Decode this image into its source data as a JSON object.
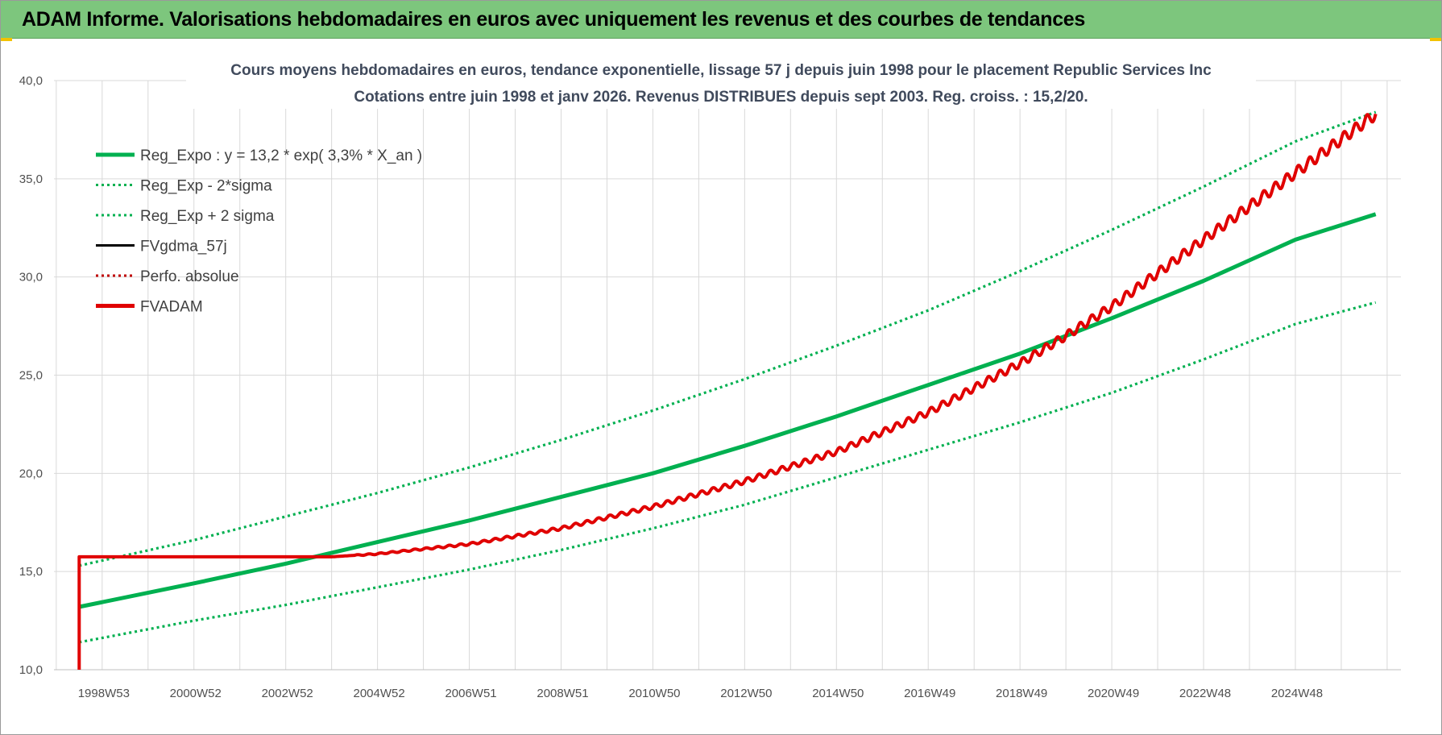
{
  "header": {
    "title": "ADAM Informe. Valorisations hebdomadaires en euros avec uniquement les revenus et des courbes de tendances"
  },
  "chart_data": {
    "type": "line",
    "title": "Cours moyens hebdomadaires en euros, tendance exponentielle, lissage 57 j depuis juin 1998 pour le placement Republic Services Inc",
    "subtitle": "Cotations entre juin 1998 et janv 2026. Revenus DISTRIBUES depuis sept 2003. Reg. croiss. : 15,2/20.",
    "xlabel": "",
    "ylabel": "",
    "ylim": [
      10,
      40
    ],
    "xlim": [
      1996.95,
      2026.3
    ],
    "yticks": [
      "10,0",
      "15,0",
      "20,0",
      "25,0",
      "30,0",
      "35,0",
      "40,0"
    ],
    "xticks": [
      {
        "label": "1998W53",
        "x": 1998.0
      },
      {
        "label": "2000W52",
        "x": 2000.0
      },
      {
        "label": "2002W52",
        "x": 2002.0
      },
      {
        "label": "2004W52",
        "x": 2004.0
      },
      {
        "label": "2006W51",
        "x": 2006.0
      },
      {
        "label": "2008W51",
        "x": 2008.0
      },
      {
        "label": "2010W50",
        "x": 2010.0
      },
      {
        "label": "2012W50",
        "x": 2012.0
      },
      {
        "label": "2014W50",
        "x": 2014.0
      },
      {
        "label": "2016W49",
        "x": 2016.0
      },
      {
        "label": "2018W49",
        "x": 2018.0
      },
      {
        "label": "2020W49",
        "x": 2020.0
      },
      {
        "label": "2022W48",
        "x": 2022.0
      },
      {
        "label": "2024W48",
        "x": 2024.0
      }
    ],
    "grid": true,
    "legend_position": "top-left",
    "series": [
      {
        "name": "Reg_Expo : y = 13,2 * exp( 3,3% *  X_an )",
        "color": "#00b050",
        "style": "solid",
        "x": [
          1997.5,
          2000,
          2002,
          2004,
          2006,
          2008,
          2010,
          2012,
          2014,
          2016,
          2018,
          2020,
          2022,
          2024,
          2025.75
        ],
        "values": [
          13.2,
          14.4,
          15.4,
          16.5,
          17.6,
          18.8,
          20.0,
          21.4,
          22.9,
          24.5,
          26.1,
          27.9,
          29.8,
          31.9,
          33.2
        ]
      },
      {
        "name": "Reg_Exp - 2*sigma",
        "color": "#00b050",
        "style": "dotted",
        "x": [
          1997.5,
          2000,
          2002,
          2004,
          2006,
          2008,
          2010,
          2012,
          2014,
          2016,
          2018,
          2020,
          2022,
          2024,
          2025.75
        ],
        "values": [
          11.4,
          12.5,
          13.3,
          14.2,
          15.1,
          16.1,
          17.2,
          18.4,
          19.8,
          21.2,
          22.6,
          24.1,
          25.8,
          27.6,
          28.7
        ]
      },
      {
        "name": "Reg_Exp + 2 sigma",
        "color": "#00b050",
        "style": "dotted",
        "x": [
          1997.5,
          2000,
          2002,
          2004,
          2006,
          2008,
          2010,
          2012,
          2014,
          2016,
          2018,
          2020,
          2022,
          2024,
          2025.75
        ],
        "values": [
          15.3,
          16.6,
          17.8,
          19.0,
          20.3,
          21.7,
          23.2,
          24.8,
          26.5,
          28.3,
          30.3,
          32.4,
          34.6,
          36.9,
          38.4
        ]
      },
      {
        "name": "FVgdma_57j",
        "color": "#000000",
        "style": "solid",
        "x": [],
        "values": []
      },
      {
        "name": "Perfo. absolue",
        "color": "#c00000",
        "style": "dotted",
        "x": [],
        "values": []
      },
      {
        "name": "FVADAM",
        "color": "#e00000",
        "style": "solid",
        "x": [
          1997.5,
          1997.5,
          2003.0,
          2004.0,
          2006.0,
          2008.0,
          2010.0,
          2012.0,
          2014.0,
          2016.0,
          2018.0,
          2019.0,
          2020.0,
          2022.0,
          2024.0,
          2025.75
        ],
        "values": [
          10.0,
          15.75,
          15.75,
          15.9,
          16.4,
          17.2,
          18.3,
          19.6,
          21.1,
          23.1,
          25.6,
          27.0,
          28.5,
          31.9,
          35.3,
          38.3
        ]
      }
    ]
  }
}
